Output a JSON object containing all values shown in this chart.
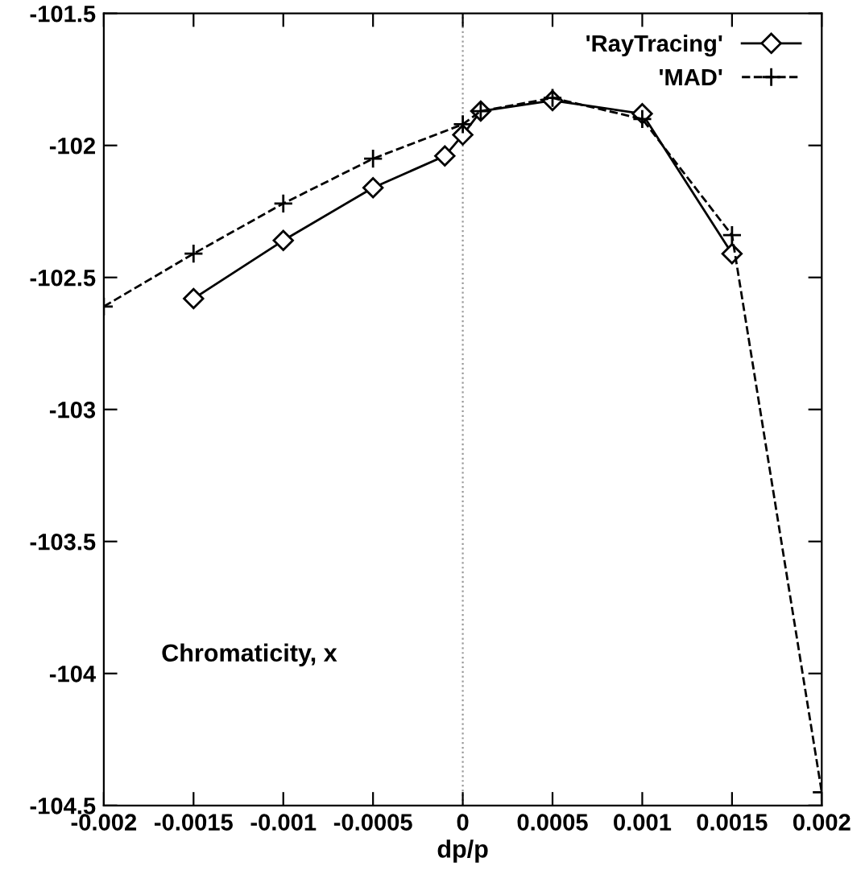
{
  "chart_data": {
    "type": "line",
    "xlabel": "dp/p",
    "annotations": [
      "Chromaticity, x"
    ],
    "xlim": [
      -0.002,
      0.002
    ],
    "xticks": [
      -0.002,
      -0.0015,
      -0.001,
      -0.0005,
      0,
      0.0005,
      0.001,
      0.0015,
      0.002
    ],
    "ylim": [
      -104.5,
      -101.5
    ],
    "yticks": [
      -104.5,
      -104,
      -103.5,
      -103,
      -102.5,
      -102,
      -101.5
    ],
    "grid": false,
    "legend": "top right",
    "ref_lines": [
      {
        "axis": "x",
        "value": 0,
        "line_style": "dotted",
        "color": "#999999"
      }
    ],
    "series": [
      {
        "name": "'RayTracing'",
        "color": "#000000",
        "marker": "diamond",
        "line_style": "solid",
        "x": [
          -0.0015,
          -0.001,
          -0.0005,
          -0.0001,
          0,
          0.0001,
          0.0005,
          0.001,
          0.0015
        ],
        "values": [
          -102.58,
          -102.36,
          -102.16,
          -102.04,
          -101.96,
          -101.87,
          -101.83,
          -101.88,
          -102.41
        ]
      },
      {
        "name": "'MAD'",
        "color": "#000000",
        "marker": "cross",
        "line_style": "dashed",
        "x": [
          -0.002,
          -0.0015,
          -0.001,
          -0.0005,
          0,
          0.0001,
          0.0005,
          0.001,
          0.0015,
          0.002
        ],
        "values": [
          -102.61,
          -102.41,
          -102.22,
          -102.05,
          -101.92,
          -101.87,
          -101.82,
          -101.9,
          -102.34,
          -104.45
        ]
      }
    ]
  }
}
